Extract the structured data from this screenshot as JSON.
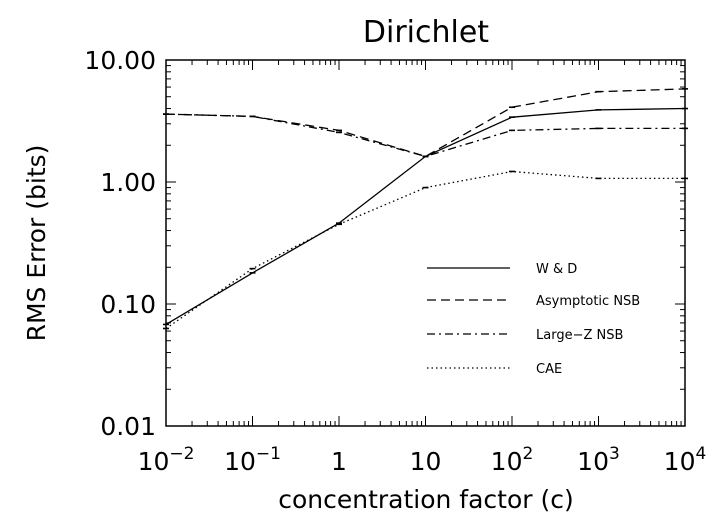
{
  "chart_data": {
    "type": "line",
    "title": "Dirichlet",
    "xlabel": "concentration factor (c)",
    "ylabel": "RMS Error (bits)",
    "x_scale": "log",
    "y_scale": "log",
    "xlim": [
      0.01,
      10000
    ],
    "ylim": [
      0.01,
      10
    ],
    "grid": false,
    "legend_position": "lower-right",
    "x": [
      0.01,
      0.1,
      1,
      10,
      100,
      1000,
      10000
    ],
    "x_ticks": [
      0.01,
      0.1,
      1,
      10,
      100,
      1000,
      10000
    ],
    "x_tick_labels": [
      {
        "base": "10",
        "exp": "−2"
      },
      {
        "base": "10",
        "exp": "−1"
      },
      {
        "base": "1",
        "exp": ""
      },
      {
        "base": "10",
        "exp": ""
      },
      {
        "base": "10",
        "exp": "2"
      },
      {
        "base": "10",
        "exp": "3"
      },
      {
        "base": "10",
        "exp": "4"
      }
    ],
    "y_ticks": [
      0.01,
      0.1,
      1,
      10
    ],
    "y_tick_labels": [
      "0.01",
      "0.10",
      "1.00",
      "10.00"
    ],
    "series": [
      {
        "name": "W & D",
        "style": "solid",
        "values": [
          0.068,
          0.18,
          0.46,
          1.62,
          3.4,
          3.9,
          4.0
        ]
      },
      {
        "name": "Asymptotic NSB",
        "style": "dashed",
        "values": [
          3.6,
          3.45,
          2.65,
          1.62,
          4.1,
          5.5,
          5.8
        ]
      },
      {
        "name": "Large−Z NSB",
        "style": "dashdot",
        "values": [
          3.6,
          3.45,
          2.55,
          1.62,
          2.65,
          2.75,
          2.75
        ]
      },
      {
        "name": "CAE",
        "style": "dotted",
        "values": [
          0.063,
          0.195,
          0.45,
          0.9,
          1.22,
          1.07,
          1.07
        ]
      }
    ]
  }
}
